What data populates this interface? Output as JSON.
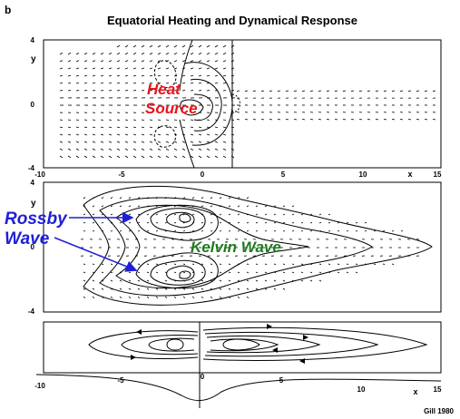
{
  "figure": {
    "panel_letter": "b",
    "title": "Equatorial Heating and Dynamical Response",
    "credit": "Gill 1980"
  },
  "top_panel": {
    "y_label": "y",
    "y_ticks": [
      "4",
      "0",
      "-4"
    ],
    "x_label": "x",
    "x_ticks": [
      "-10",
      "-5",
      "0",
      "5",
      "10",
      "15"
    ],
    "annotation_line1": "Heat",
    "annotation_line2": "Source"
  },
  "middle_panel": {
    "y_label": "y",
    "y_ticks": [
      "4",
      "0",
      "-4"
    ],
    "rossby_line1": "Rossby",
    "rossby_line2": "Wave",
    "kelvin": "Kelvin Wave"
  },
  "bottom_panel": {
    "x_label": "x",
    "x_ticks": [
      "-10",
      "-5",
      "0",
      "5",
      "10",
      "15"
    ]
  },
  "colors": {
    "ink": "#000000",
    "heat_source": "#e8141a",
    "rossby": "#1f1fd6",
    "kelvin": "#1e7a1e"
  }
}
